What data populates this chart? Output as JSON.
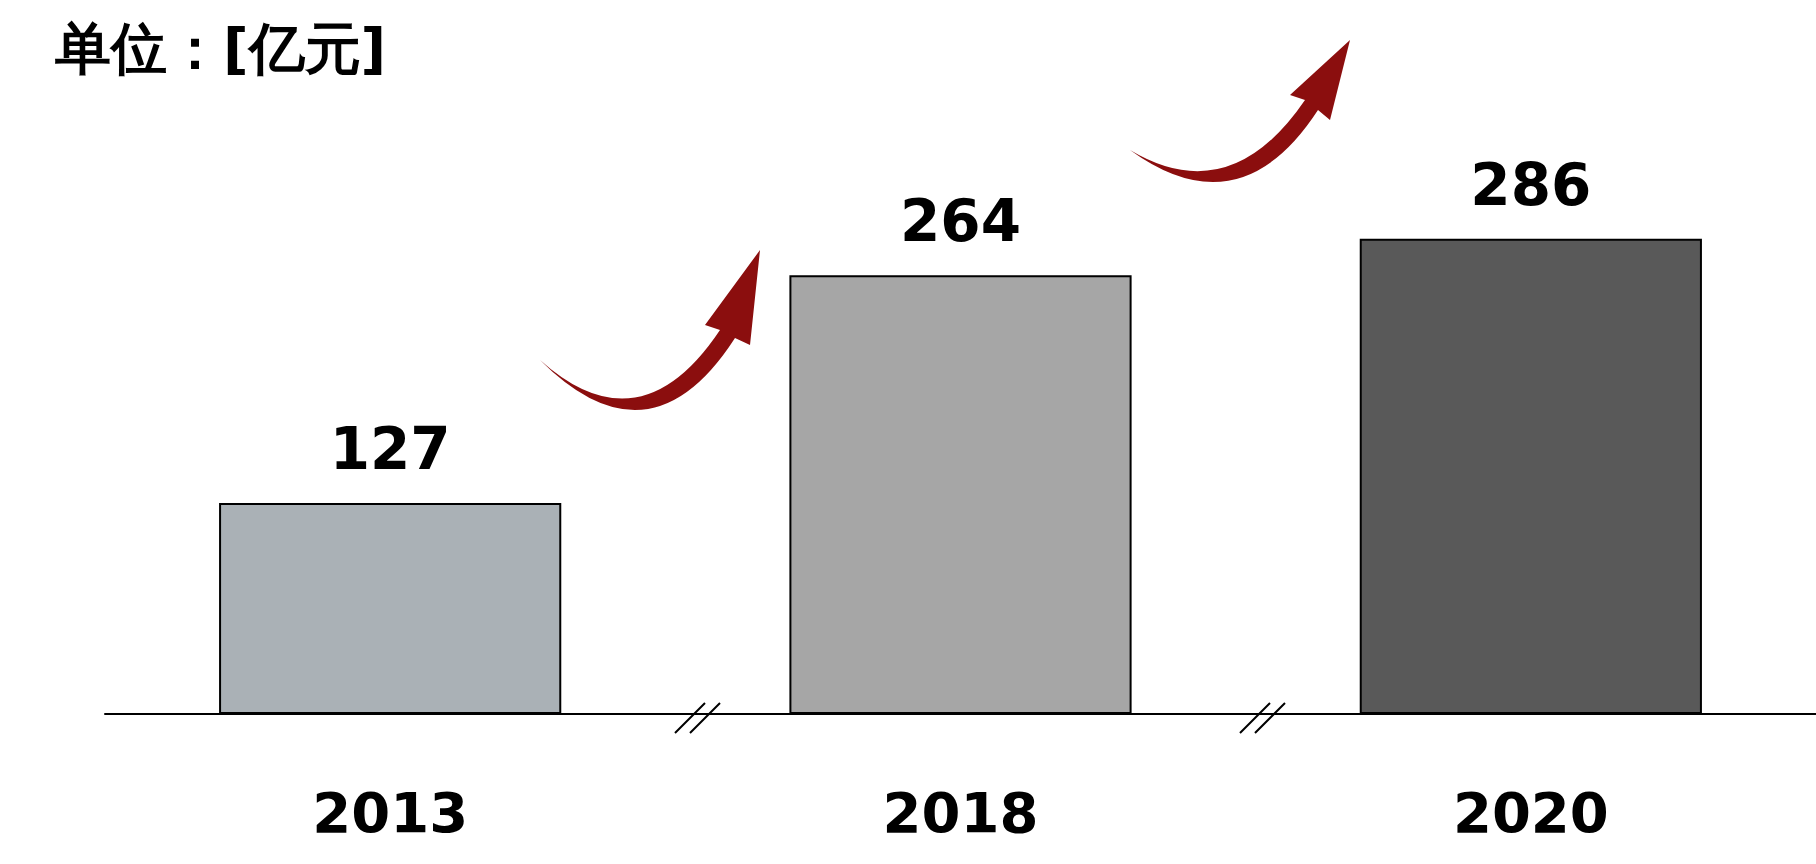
{
  "chart_data": {
    "type": "bar",
    "categories": [
      "2013",
      "2018",
      "2020"
    ],
    "values": [
      127,
      264,
      286
    ],
    "colors": [
      "#aab1b6",
      "#a6a6a6",
      "#595959"
    ],
    "data_labels": true,
    "annotations": [
      "单位：[亿元]"
    ]
  }
}
